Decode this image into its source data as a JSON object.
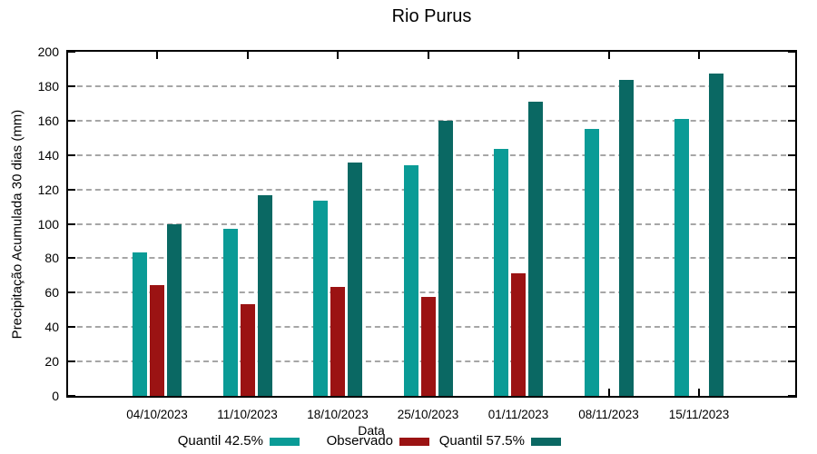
{
  "chart_data": {
    "type": "bar",
    "title": "Rio Purus",
    "xlabel": "Data",
    "ylabel": "Precipitação Acumulada 30 dias (mm)",
    "ylim": [
      0,
      200
    ],
    "y_ticks": [
      0,
      20,
      40,
      60,
      80,
      100,
      120,
      140,
      160,
      180,
      200
    ],
    "grid": true,
    "grid_style": "dashed",
    "legend_position": "bottom",
    "categories": [
      "04/10/2023",
      "11/10/2023",
      "18/10/2023",
      "25/10/2023",
      "01/11/2023",
      "08/11/2023",
      "15/11/2023"
    ],
    "series": [
      {
        "name": "Quantil 42.5%",
        "color": "#0a9b96",
        "values": [
          83.5,
          97,
          113.5,
          134,
          143.5,
          155,
          161
        ]
      },
      {
        "name": "Observado",
        "color": "#9b1313",
        "values": [
          64.5,
          53.5,
          63.5,
          57.5,
          71.5,
          null,
          null
        ]
      },
      {
        "name": "Quantil 57.5%",
        "color": "#0a6863",
        "values": [
          100,
          116.5,
          135.5,
          160,
          171,
          183.5,
          187.5
        ]
      }
    ]
  }
}
